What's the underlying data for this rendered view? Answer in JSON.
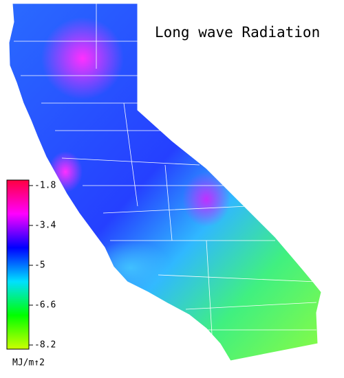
{
  "map": {
    "title": "Long wave Radiation",
    "colorbar": {
      "range": [
        -8.2,
        -1.8
      ],
      "ticks": [
        -1.8,
        -3.4,
        -5.0,
        -6.6,
        -8.2
      ],
      "unit": "MJ/m↑2",
      "colors": [
        "#ccff00",
        "#00ff00",
        "#00e0ff",
        "#0000ff",
        "#ff00ff",
        "#ff0040"
      ]
    }
  }
}
